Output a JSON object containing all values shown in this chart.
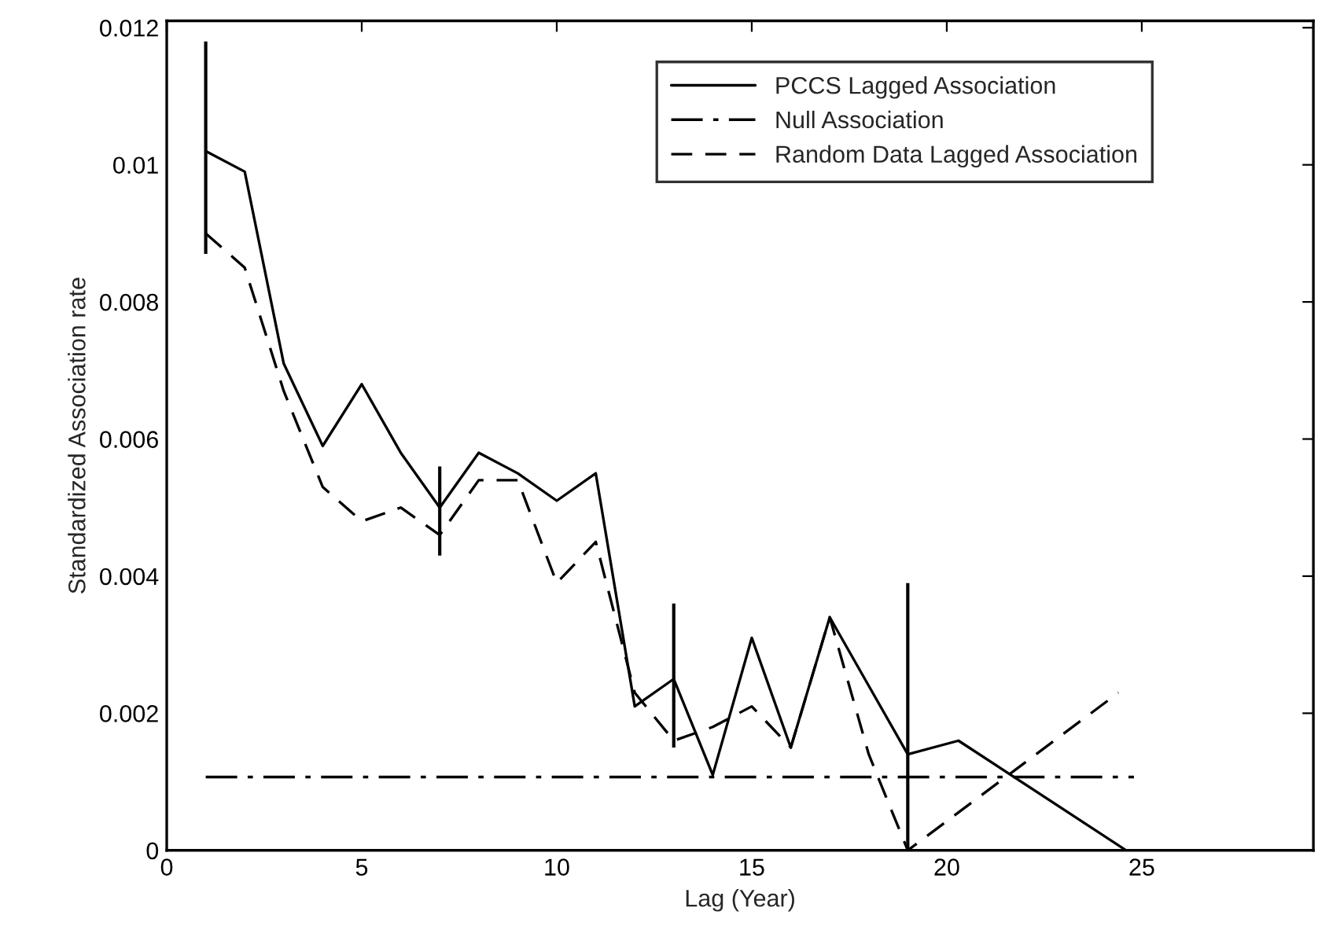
{
  "chart_data": {
    "type": "line",
    "xlabel": "Lag (Year)",
    "ylabel": "Standardized Association rate",
    "series": [
      {
        "name": "PCCS Lagged Association",
        "color": "#000000",
        "line_style": "solid",
        "x": [
          1,
          2,
          3,
          4,
          5,
          6,
          7,
          8,
          9,
          10,
          11,
          12,
          13,
          14,
          15,
          16,
          17,
          18,
          19,
          20.3,
          24.6
        ],
        "values": [
          0.0102,
          0.0099,
          0.0071,
          0.0059,
          0.0068,
          0.0058,
          0.005,
          0.0058,
          0.0055,
          0.0051,
          0.0055,
          0.0021,
          0.0025,
          0.0011,
          0.0031,
          0.0015,
          0.0034,
          0.0024,
          0.0014,
          0.0016,
          0.0
        ],
        "errors": [
          [
            0.0087,
            0.0118
          ],
          null,
          null,
          null,
          null,
          null,
          [
            0.0043,
            0.0056
          ],
          null,
          null,
          null,
          null,
          null,
          [
            0.0015,
            0.0036
          ],
          null,
          null,
          null,
          null,
          null,
          [
            0.0,
            0.0039
          ],
          null,
          null
        ]
      },
      {
        "name": "Null Association",
        "color": "#000000",
        "line_style": "dashdot",
        "x": [
          1,
          24.8
        ],
        "values": [
          0.00107,
          0.00107
        ]
      },
      {
        "name": "Random Data Lagged Association",
        "color": "#000000",
        "line_style": "dashed",
        "x": [
          1,
          2,
          3,
          4,
          5,
          6,
          7,
          8,
          9,
          10,
          11,
          12,
          13,
          14,
          15,
          16,
          17,
          18,
          19,
          24.4
        ],
        "values": [
          0.009,
          0.0085,
          0.0067,
          0.0053,
          0.0048,
          0.005,
          0.0046,
          0.0054,
          0.0054,
          0.0039,
          0.0045,
          0.0023,
          0.0016,
          0.0018,
          0.0021,
          0.0015,
          0.0034,
          0.0014,
          0.0,
          0.0023
        ]
      }
    ],
    "xlim": [
      0,
      29.4
    ],
    "xticks": [
      0,
      5,
      10,
      15,
      20,
      25
    ],
    "ylim": [
      0,
      0.0121
    ],
    "yticks": [
      0,
      0.002,
      0.004,
      0.006,
      0.008,
      0.01,
      0.012
    ],
    "legend": "top right",
    "grid": false
  }
}
